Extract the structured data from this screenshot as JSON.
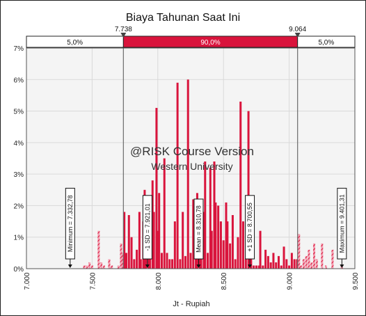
{
  "chart_data": {
    "type": "bar",
    "title": "Biaya Tahunan Saat Ini",
    "xlabel": "Jt - Rupiah",
    "ylabel": "",
    "xlim": [
      7.0,
      9.5
    ],
    "ylim": [
      0,
      7
    ],
    "x_ticks": [
      "7.000",
      "7.500",
      "8.000",
      "8.500",
      "9.000",
      "9.500"
    ],
    "y_ticks": [
      "0%",
      "1%",
      "2%",
      "3%",
      "4%",
      "5%",
      "6%",
      "7%"
    ],
    "grid": true,
    "cutoffs": {
      "left_value": 7.738,
      "left_label": "7.738",
      "right_value": 9.064,
      "right_label": "9.064"
    },
    "bands": {
      "left": "5,0%",
      "middle": "90,0%",
      "right": "5,0%"
    },
    "markers": [
      {
        "x": 7.33278,
        "label": "Minimum = 7.332,78"
      },
      {
        "x": 7.92101,
        "label": "-1 SD = 7.921,01"
      },
      {
        "x": 8.31078,
        "label": "Mean = 8.310,78"
      },
      {
        "x": 8.70055,
        "label": "+1 SD = 8.700,55"
      },
      {
        "x": 9.40131,
        "label": "Maximum = 9.401,31"
      }
    ],
    "watermark": {
      "line1": "@RISK Course Version",
      "line2": "Western University"
    },
    "bars": [
      {
        "x": 7.44,
        "y": 0.1
      },
      {
        "x": 7.46,
        "y": 0.1
      },
      {
        "x": 7.48,
        "y": 0.2
      },
      {
        "x": 7.5,
        "y": 0.1
      },
      {
        "x": 7.55,
        "y": 1.2
      },
      {
        "x": 7.57,
        "y": 0.2
      },
      {
        "x": 7.59,
        "y": 0.1
      },
      {
        "x": 7.63,
        "y": 0.3
      },
      {
        "x": 7.65,
        "y": 0.1
      },
      {
        "x": 7.7,
        "y": 0.1
      },
      {
        "x": 7.72,
        "y": 0.8
      },
      {
        "x": 7.73,
        "y": 0.5
      },
      {
        "x": 7.745,
        "y": 1.8
      },
      {
        "x": 7.76,
        "y": 0.5
      },
      {
        "x": 7.78,
        "y": 1.7
      },
      {
        "x": 7.8,
        "y": 1.0
      },
      {
        "x": 7.82,
        "y": 0.3
      },
      {
        "x": 7.84,
        "y": 0.6
      },
      {
        "x": 7.86,
        "y": 1.8
      },
      {
        "x": 7.87,
        "y": 0.3
      },
      {
        "x": 7.89,
        "y": 1.5
      },
      {
        "x": 7.9,
        "y": 2.5
      },
      {
        "x": 7.91,
        "y": 1.0
      },
      {
        "x": 7.93,
        "y": 2.2
      },
      {
        "x": 7.94,
        "y": 0.5
      },
      {
        "x": 7.96,
        "y": 2.8
      },
      {
        "x": 7.97,
        "y": 1.8
      },
      {
        "x": 7.99,
        "y": 5.1
      },
      {
        "x": 8.0,
        "y": 1.2
      },
      {
        "x": 8.01,
        "y": 2.4
      },
      {
        "x": 8.03,
        "y": 0.5
      },
      {
        "x": 8.05,
        "y": 3.5
      },
      {
        "x": 8.07,
        "y": 0.5
      },
      {
        "x": 8.09,
        "y": 0.3
      },
      {
        "x": 8.11,
        "y": 0.3
      },
      {
        "x": 8.13,
        "y": 1.5
      },
      {
        "x": 8.15,
        "y": 5.9
      },
      {
        "x": 8.17,
        "y": 0.3
      },
      {
        "x": 8.19,
        "y": 1.8
      },
      {
        "x": 8.21,
        "y": 0.4
      },
      {
        "x": 8.23,
        "y": 6.0
      },
      {
        "x": 8.25,
        "y": 0.5
      },
      {
        "x": 8.27,
        "y": 2.2
      },
      {
        "x": 8.29,
        "y": 0.7
      },
      {
        "x": 8.3,
        "y": 2.4
      },
      {
        "x": 8.32,
        "y": 2.0
      },
      {
        "x": 8.33,
        "y": 0.5
      },
      {
        "x": 8.35,
        "y": 1.8
      },
      {
        "x": 8.36,
        "y": 3.4
      },
      {
        "x": 8.38,
        "y": 0.5
      },
      {
        "x": 8.4,
        "y": 3.2
      },
      {
        "x": 8.41,
        "y": 1.2
      },
      {
        "x": 8.43,
        "y": 3.4
      },
      {
        "x": 8.44,
        "y": 2.1
      },
      {
        "x": 8.46,
        "y": 2.0
      },
      {
        "x": 8.48,
        "y": 1.5
      },
      {
        "x": 8.5,
        "y": 0.9
      },
      {
        "x": 8.52,
        "y": 2.1
      },
      {
        "x": 8.53,
        "y": 1.5
      },
      {
        "x": 8.55,
        "y": 0.8
      },
      {
        "x": 8.57,
        "y": 1.7
      },
      {
        "x": 8.59,
        "y": 0.3
      },
      {
        "x": 8.61,
        "y": 1.0
      },
      {
        "x": 8.63,
        "y": 5.3
      },
      {
        "x": 8.65,
        "y": 1.5
      },
      {
        "x": 8.67,
        "y": 0.3
      },
      {
        "x": 8.69,
        "y": 5.0
      },
      {
        "x": 8.71,
        "y": 0.8
      },
      {
        "x": 8.73,
        "y": 0.1
      },
      {
        "x": 8.75,
        "y": 0.1
      },
      {
        "x": 8.77,
        "y": 0.1
      },
      {
        "x": 8.78,
        "y": 1.2
      },
      {
        "x": 8.8,
        "y": 0.1
      },
      {
        "x": 8.82,
        "y": 0.6
      },
      {
        "x": 8.84,
        "y": 0.4
      },
      {
        "x": 8.86,
        "y": 0.2
      },
      {
        "x": 8.88,
        "y": 0.5
      },
      {
        "x": 8.9,
        "y": 0.2
      },
      {
        "x": 8.92,
        "y": 0.4
      },
      {
        "x": 8.94,
        "y": 0.1
      },
      {
        "x": 8.96,
        "y": 0.7
      },
      {
        "x": 8.98,
        "y": 0.3
      },
      {
        "x": 9.0,
        "y": 0.1
      },
      {
        "x": 9.02,
        "y": 0.5
      },
      {
        "x": 9.04,
        "y": 0.3
      },
      {
        "x": 9.06,
        "y": 0.3
      },
      {
        "x": 9.075,
        "y": 1.1
      },
      {
        "x": 9.09,
        "y": 0.1
      },
      {
        "x": 9.11,
        "y": 0.3
      },
      {
        "x": 9.13,
        "y": 0.4
      },
      {
        "x": 9.15,
        "y": 0.6
      },
      {
        "x": 9.17,
        "y": 0.2
      },
      {
        "x": 9.19,
        "y": 0.8
      },
      {
        "x": 9.21,
        "y": 0.3
      },
      {
        "x": 9.25,
        "y": 0.8
      },
      {
        "x": 9.28,
        "y": 0.1
      },
      {
        "x": 9.33,
        "y": 0.6
      },
      {
        "x": 9.4,
        "y": 0.1
      }
    ]
  },
  "colors": {
    "bar": "#d9143c",
    "band_middle": "#d9143c",
    "band_side": "#ffffff",
    "cutoff_line": "#6b6b6b",
    "plot_bg": "#f4f4f4",
    "grid": "#d9d9d9"
  }
}
